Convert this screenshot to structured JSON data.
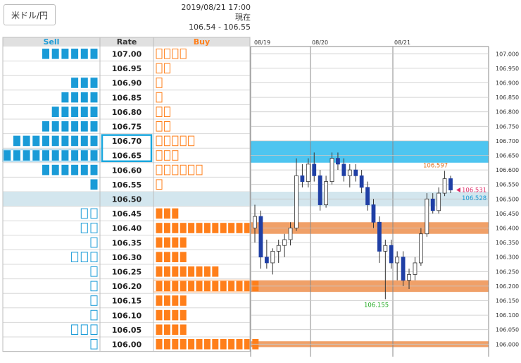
{
  "pair_button": "米ドル/円",
  "header": {
    "timestamp": "2019/08/21 17:00 現在",
    "quote": "106.54 - 106.55"
  },
  "order_book": {
    "columns": {
      "sell": "Sell",
      "rate": "Rate",
      "buy": "Buy"
    },
    "rows": [
      {
        "rate": "107.00",
        "sell": 6,
        "buy": 4
      },
      {
        "rate": "106.95",
        "sell": 0,
        "buy": 2
      },
      {
        "rate": "106.90",
        "sell": 3,
        "buy": 1
      },
      {
        "rate": "106.85",
        "sell": 4,
        "buy": 1
      },
      {
        "rate": "106.80",
        "sell": 5,
        "buy": 2
      },
      {
        "rate": "106.75",
        "sell": 6,
        "buy": 2
      },
      {
        "rate": "106.70",
        "sell": 9,
        "buy": 5
      },
      {
        "rate": "106.65",
        "sell": 10,
        "buy": 3
      },
      {
        "rate": "106.60",
        "sell": 6,
        "buy": 6
      },
      {
        "rate": "106.55",
        "sell": 1,
        "buy": 1
      },
      {
        "rate": "106.50",
        "sell": 0,
        "buy": 0,
        "current": true
      },
      {
        "rate": "106.45",
        "sell": 2,
        "buy": 3
      },
      {
        "rate": "106.40",
        "sell": 2,
        "buy": 12
      },
      {
        "rate": "106.35",
        "sell": 1,
        "buy": 4
      },
      {
        "rate": "106.30",
        "sell": 3,
        "buy": 4
      },
      {
        "rate": "106.25",
        "sell": 1,
        "buy": 8
      },
      {
        "rate": "106.20",
        "sell": 1,
        "buy": 13
      },
      {
        "rate": "106.15",
        "sell": 1,
        "buy": 4
      },
      {
        "rate": "106.10",
        "sell": 1,
        "buy": 4
      },
      {
        "rate": "106.05",
        "sell": 3,
        "buy": 4
      },
      {
        "rate": "106.00",
        "sell": 1,
        "buy": 13
      }
    ],
    "sell_filled": {
      "107.00": [
        0,
        1,
        2,
        3,
        4,
        5
      ],
      "106.90": [
        0,
        1,
        2
      ],
      "106.85": [
        0,
        1,
        2,
        3
      ],
      "106.80": [
        0,
        1,
        2,
        3,
        4
      ],
      "106.75": [
        0,
        1,
        2,
        3,
        4,
        5
      ],
      "106.70": [
        0,
        1,
        2,
        3,
        4,
        5,
        6,
        7,
        8
      ],
      "106.65": [
        0,
        1,
        2,
        3,
        4,
        5,
        6,
        7,
        8,
        9
      ],
      "106.60": [
        0,
        1,
        2,
        3,
        4,
        5
      ],
      "106.55": [
        0
      ]
    },
    "buy_filled": {
      "106.45": [
        0,
        1,
        2
      ],
      "106.40": [
        0,
        1,
        2,
        3,
        4,
        5,
        6,
        7,
        8,
        9,
        10,
        11
      ],
      "106.35": [
        0,
        1,
        2,
        3
      ],
      "106.30": [
        0,
        1,
        2,
        3
      ],
      "106.25": [
        0,
        1,
        2,
        3,
        4,
        5,
        6,
        7
      ],
      "106.20": [
        0,
        1,
        2,
        3,
        4,
        5,
        6,
        7,
        8,
        9,
        10,
        11,
        12
      ],
      "106.15": [
        0,
        1,
        2,
        3
      ],
      "106.10": [
        0,
        1,
        2,
        3
      ],
      "106.05": [
        0,
        1,
        2,
        3
      ],
      "106.00": [
        0,
        1,
        2,
        3,
        4,
        5,
        6,
        7,
        8,
        9,
        10,
        11,
        12
      ]
    },
    "highlighted_rates": [
      "106.70",
      "106.65"
    ],
    "colors": {
      "sell": "#1a9bd7",
      "buy": "#ff7f1a",
      "header": "#e0e0e0",
      "current_row": "#d3e6ee",
      "sell_zone": "#4ec5f0",
      "buy_zone": "#f0a068"
    }
  },
  "chart_data": {
    "type": "candlestick",
    "x_labels": [
      "08/19",
      "08/20",
      "08/21"
    ],
    "y_ticks": [
      "107.000",
      "106.950",
      "106.900",
      "106.850",
      "106.800",
      "106.750",
      "106.700",
      "106.650",
      "106.600",
      "106.550",
      "106.500",
      "106.450",
      "106.400",
      "106.350",
      "106.300",
      "106.250",
      "106.200",
      "106.150",
      "106.100",
      "106.050",
      "106.000"
    ],
    "ylim": [
      106.0,
      107.0
    ],
    "grid": true,
    "annotations": {
      "high": "106.597",
      "low": "106.155",
      "current_ask": "106.531",
      "current_bid": "106.528"
    },
    "sell_bands": [
      [
        106.65,
        106.7
      ],
      [
        106.625,
        106.65
      ]
    ],
    "buy_bands": [
      [
        106.38,
        106.42
      ],
      [
        106.18,
        106.22
      ],
      [
        105.99,
        106.01
      ]
    ],
    "candles": [
      [
        106.4,
        106.48,
        106.35,
        106.44
      ],
      [
        106.44,
        106.46,
        106.26,
        106.3
      ],
      [
        106.3,
        106.36,
        106.26,
        106.28
      ],
      [
        106.28,
        106.33,
        106.24,
        106.32
      ],
      [
        106.32,
        106.36,
        106.28,
        106.34
      ],
      [
        106.34,
        106.38,
        106.3,
        106.36
      ],
      [
        106.36,
        106.42,
        106.34,
        106.4
      ],
      [
        106.4,
        106.64,
        106.39,
        106.58
      ],
      [
        106.58,
        106.62,
        106.54,
        106.56
      ],
      [
        106.56,
        106.64,
        106.54,
        106.62
      ],
      [
        106.62,
        106.66,
        106.56,
        106.58
      ],
      [
        106.58,
        106.6,
        106.46,
        106.48
      ],
      [
        106.48,
        106.58,
        106.47,
        106.56
      ],
      [
        106.56,
        106.66,
        106.55,
        106.64
      ],
      [
        106.64,
        106.66,
        106.6,
        106.62
      ],
      [
        106.62,
        106.64,
        106.56,
        106.58
      ],
      [
        106.58,
        106.62,
        106.54,
        106.6
      ],
      [
        106.6,
        106.62,
        106.56,
        106.58
      ],
      [
        106.58,
        106.6,
        106.52,
        106.54
      ],
      [
        106.54,
        106.56,
        106.46,
        106.48
      ],
      [
        106.48,
        106.5,
        106.4,
        106.42
      ],
      [
        106.42,
        106.44,
        106.28,
        106.32
      ],
      [
        106.32,
        106.36,
        106.155,
        106.34
      ],
      [
        106.34,
        106.36,
        106.26,
        106.28
      ],
      [
        106.28,
        106.32,
        106.22,
        106.3
      ],
      [
        106.3,
        106.32,
        106.2,
        106.22
      ],
      [
        106.22,
        106.26,
        106.19,
        106.24
      ],
      [
        106.24,
        106.3,
        106.22,
        106.28
      ],
      [
        106.28,
        106.4,
        106.27,
        106.38
      ],
      [
        106.38,
        106.52,
        106.37,
        106.5
      ],
      [
        106.5,
        106.52,
        106.45,
        106.46
      ],
      [
        106.46,
        106.54,
        106.45,
        106.52
      ],
      [
        106.52,
        106.597,
        106.51,
        106.57
      ],
      [
        106.57,
        106.58,
        106.52,
        106.531
      ]
    ]
  }
}
